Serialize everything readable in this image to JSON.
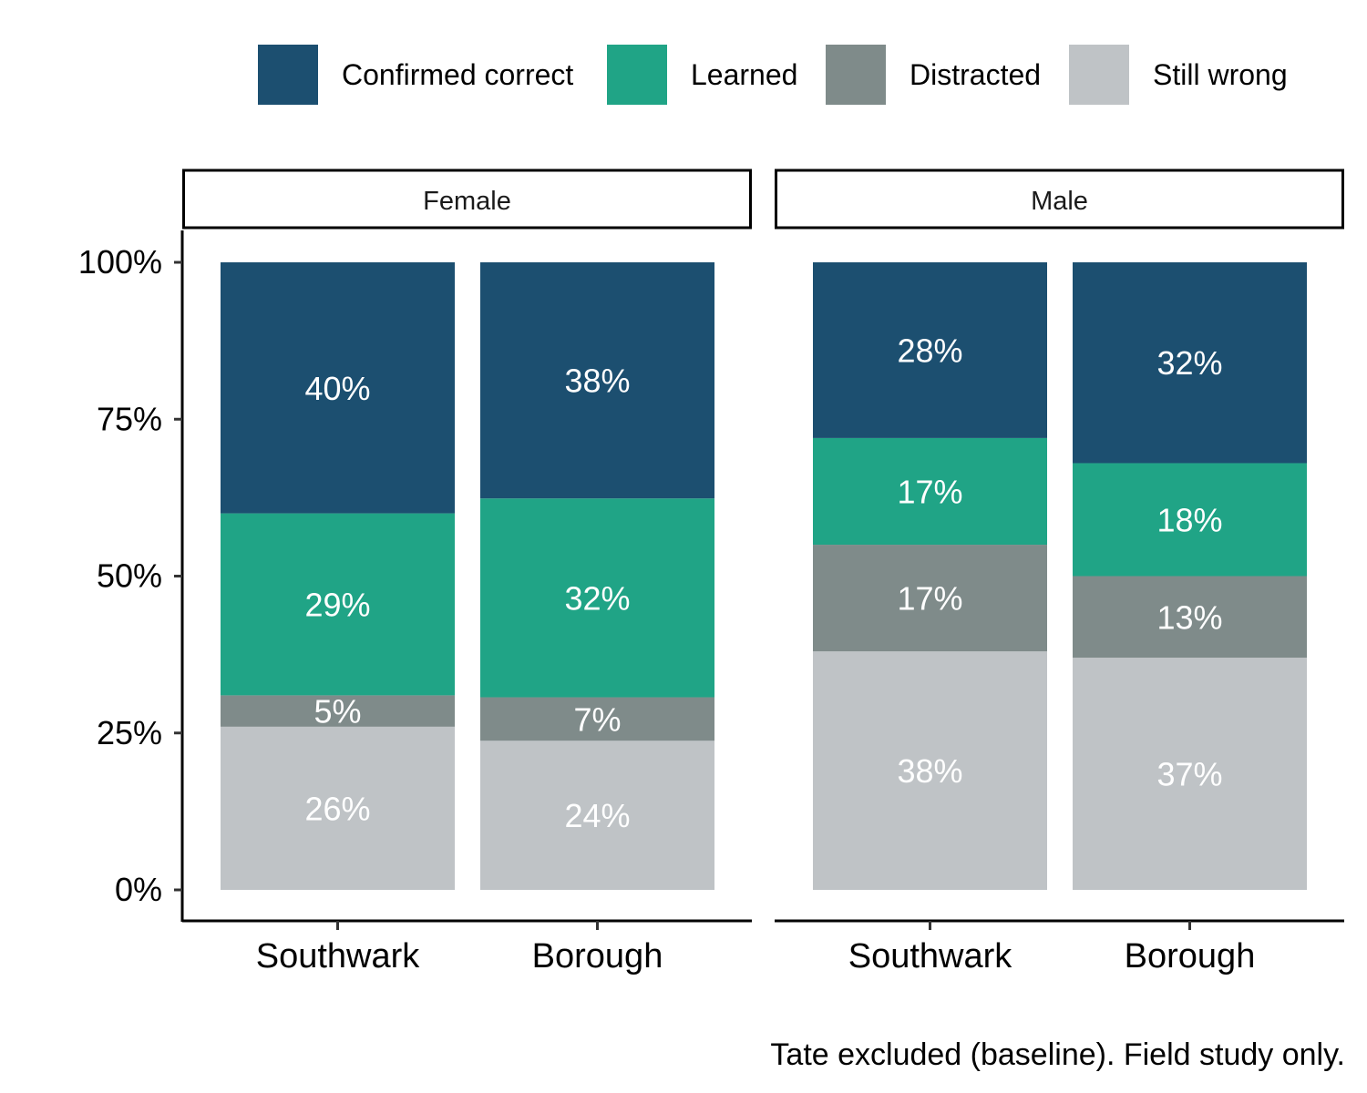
{
  "chart_data": {
    "type": "bar",
    "stacked": true,
    "categories": [
      "Southwark",
      "Borough"
    ],
    "facets": [
      "Female",
      "Male"
    ],
    "ylim": [
      0,
      100
    ],
    "yticks": [
      "0%",
      "25%",
      "50%",
      "75%",
      "100%"
    ],
    "ytick_values": [
      0,
      25,
      50,
      75,
      100
    ],
    "legend_position": "top",
    "series": [
      {
        "name": "Confirmed correct",
        "color": "#1c4f70",
        "values": {
          "Female": [
            40,
            38
          ],
          "Male": [
            28,
            32
          ]
        }
      },
      {
        "name": "Learned",
        "color": "#20a486",
        "values": {
          "Female": [
            29,
            32
          ],
          "Male": [
            17,
            18
          ]
        }
      },
      {
        "name": "Distracted",
        "color": "#7f8b8a",
        "values": {
          "Female": [
            5,
            7
          ],
          "Male": [
            17,
            13
          ]
        }
      },
      {
        "name": "Still wrong",
        "color": "#bfc3c6",
        "values": {
          "Female": [
            26,
            24
          ],
          "Male": [
            38,
            37
          ]
        }
      }
    ],
    "caption": "Tate excluded (baseline). Field study only."
  }
}
